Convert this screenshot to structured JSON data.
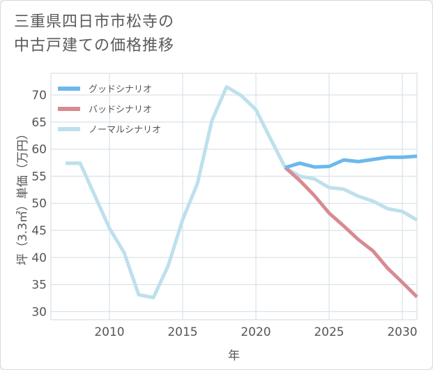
{
  "title_lines": [
    "三重県四日市市松寺の",
    "中古戸建ての価格推移"
  ],
  "chart_data": {
    "type": "line",
    "title": "三重県四日市市松寺の中古戸建ての価格推移",
    "xlabel": "年",
    "ylabel": "坪（3.3㎡）単価（万円）",
    "xlim": [
      2006,
      2031
    ],
    "ylim": [
      28.5,
      74
    ],
    "xticks": [
      2010,
      2015,
      2020,
      2025,
      2030
    ],
    "yticks": [
      30,
      35,
      40,
      45,
      50,
      55,
      60,
      65,
      70
    ],
    "grid": true,
    "legend_position": "top-left",
    "series": [
      {
        "name": "グッドシナリオ",
        "color": "#6cb8ec",
        "x": [
          2022,
          2023,
          2024,
          2025,
          2026,
          2027,
          2028,
          2029,
          2030,
          2031
        ],
        "y": [
          56.6,
          57.4,
          56.7,
          56.8,
          58.0,
          57.7,
          58.1,
          58.5,
          58.5,
          58.7
        ]
      },
      {
        "name": "バッドシナリオ",
        "color": "#d98a91",
        "x": [
          2022,
          2023,
          2024,
          2025,
          2026,
          2027,
          2028,
          2029,
          2030,
          2031
        ],
        "y": [
          56.6,
          54.2,
          51.4,
          48.2,
          45.8,
          43.3,
          41.2,
          38.0,
          35.4,
          32.7
        ]
      },
      {
        "name": "ノーマルシナリオ",
        "color": "#bde0ec",
        "x": [
          2007,
          2008,
          2009,
          2010,
          2011,
          2012,
          2013,
          2014,
          2015,
          2016,
          2017,
          2018,
          2019,
          2020,
          2021,
          2022,
          2023,
          2024,
          2025,
          2026,
          2027,
          2028,
          2029,
          2030,
          2031
        ],
        "y": [
          57.4,
          57.4,
          51.4,
          45.4,
          40.9,
          33.1,
          32.6,
          38.4,
          47.0,
          53.6,
          65.3,
          71.5,
          69.9,
          67.3,
          61.9,
          56.6,
          55.0,
          54.5,
          52.9,
          52.6,
          51.3,
          50.4,
          49.0,
          48.5,
          46.9
        ]
      }
    ]
  }
}
